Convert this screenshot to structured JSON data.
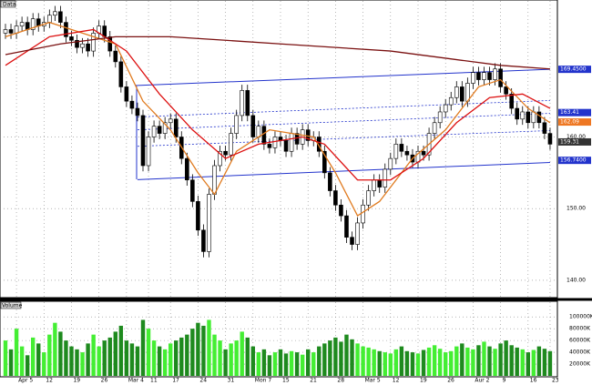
{
  "chart_data": {
    "type": "candlestick",
    "title": "Data",
    "volume_title": "Volume",
    "candles": [
      [
        174.5,
        175.8,
        173.7,
        175
      ],
      [
        175,
        175.8,
        173.7,
        174.5
      ],
      [
        174.5,
        176.3,
        173.7,
        175.5
      ],
      [
        175.5,
        176.8,
        174.7,
        176
      ],
      [
        176,
        176.8,
        174.2,
        175
      ],
      [
        175,
        177.3,
        174.2,
        176.5
      ],
      [
        176.5,
        177.3,
        174.7,
        175.5
      ],
      [
        175.5,
        176.8,
        174.7,
        176
      ],
      [
        176,
        177.8,
        175.2,
        177
      ],
      [
        177,
        178.3,
        176.2,
        177.5
      ],
      [
        177.5,
        178.3,
        175.2,
        176
      ],
      [
        176,
        176.8,
        173.2,
        174
      ],
      [
        174,
        174.8,
        172.7,
        173.5
      ],
      [
        173.5,
        174.3,
        171.7,
        172.5
      ],
      [
        172.5,
        173.8,
        171.7,
        173
      ],
      [
        173,
        173.8,
        171.2,
        172
      ],
      [
        172,
        175.3,
        171.2,
        174.5
      ],
      [
        174.5,
        176.3,
        173.7,
        175.5
      ],
      [
        175.5,
        176.3,
        173.2,
        174
      ],
      [
        174,
        174.8,
        171.2,
        172
      ],
      [
        172,
        172.8,
        169.7,
        170.5
      ],
      [
        170.5,
        171.3,
        166.2,
        167
      ],
      [
        167,
        167.8,
        164.2,
        165
      ],
      [
        165,
        165.8,
        163.2,
        164
      ],
      [
        164,
        164.8,
        162.2,
        163
      ],
      [
        163,
        163.8,
        155.2,
        156
      ],
      [
        156,
        160.8,
        155.2,
        160
      ],
      [
        160,
        162.3,
        159.2,
        161.5
      ],
      [
        161.5,
        162.3,
        159.7,
        160.5
      ],
      [
        160.5,
        162.8,
        159.7,
        162
      ],
      [
        162,
        163.3,
        161.2,
        162.5
      ],
      [
        162.5,
        163.3,
        159.2,
        160
      ],
      [
        160,
        160.8,
        156.2,
        157
      ],
      [
        157,
        157.8,
        153.2,
        154
      ],
      [
        154,
        154.8,
        150.2,
        151
      ],
      [
        151,
        151.8,
        146.2,
        147
      ],
      [
        147,
        147.8,
        143.2,
        144
      ],
      [
        144,
        152.8,
        143.2,
        152
      ],
      [
        152,
        156.8,
        151.2,
        156
      ],
      [
        156,
        158.8,
        155.2,
        158
      ],
      [
        158,
        158.8,
        156.7,
        157.5
      ],
      [
        157.5,
        161.3,
        156.7,
        160.5
      ],
      [
        160.5,
        163.8,
        159.7,
        163
      ],
      [
        163,
        167.3,
        162.2,
        166.5
      ],
      [
        166.5,
        167.3,
        162.2,
        163
      ],
      [
        163,
        163.8,
        159.2,
        160
      ],
      [
        160,
        162.3,
        159.2,
        161.5
      ],
      [
        161.5,
        162.3,
        158.2,
        159
      ],
      [
        159,
        159.8,
        157.7,
        158.5
      ],
      [
        158.5,
        160.8,
        157.7,
        160
      ],
      [
        160,
        160.8,
        158.7,
        159.5
      ],
      [
        159.5,
        160.3,
        157.2,
        158
      ],
      [
        158,
        161.3,
        157.2,
        160.5
      ],
      [
        160.5,
        161.3,
        158.2,
        159
      ],
      [
        159,
        161.8,
        158.2,
        161
      ],
      [
        161,
        161.8,
        158.7,
        159.5
      ],
      [
        159.5,
        160.8,
        158.7,
        160
      ],
      [
        160,
        160.8,
        157.2,
        158
      ],
      [
        158,
        158.8,
        154.2,
        155
      ],
      [
        155,
        155.8,
        151.7,
        152.5
      ],
      [
        152.5,
        153.3,
        149.7,
        150.5
      ],
      [
        150.5,
        151.3,
        148.2,
        149
      ],
      [
        149,
        149.8,
        145.2,
        146
      ],
      [
        146,
        146.8,
        144.2,
        145
      ],
      [
        145,
        148.8,
        144.2,
        148
      ],
      [
        148,
        151.3,
        147.2,
        150.5
      ],
      [
        150.5,
        153.3,
        149.7,
        152.5
      ],
      [
        152.5,
        154.8,
        151.7,
        154
      ],
      [
        154,
        154.8,
        152.2,
        153
      ],
      [
        153,
        156.3,
        152.2,
        155.5
      ],
      [
        155.5,
        157.8,
        154.7,
        157
      ],
      [
        157,
        159.8,
        156.2,
        159
      ],
      [
        159,
        159.8,
        157.2,
        158
      ],
      [
        158,
        158.8,
        156.7,
        157.5
      ],
      [
        157.5,
        158.3,
        155.7,
        156.5
      ],
      [
        156.5,
        158.8,
        155.7,
        158
      ],
      [
        158,
        158.8,
        156.7,
        157.5
      ],
      [
        157.5,
        161.3,
        156.7,
        160.5
      ],
      [
        160.5,
        162.8,
        159.7,
        162
      ],
      [
        162,
        164.3,
        161.2,
        163.5
      ],
      [
        163.5,
        165.3,
        162.7,
        164.5
      ],
      [
        164.5,
        166.3,
        163.7,
        165.5
      ],
      [
        165.5,
        167.8,
        164.7,
        167
      ],
      [
        167,
        167.8,
        164.2,
        165
      ],
      [
        165,
        168.3,
        164.2,
        167.5
      ],
      [
        167.5,
        169.8,
        166.7,
        169
      ],
      [
        169,
        169.8,
        167.2,
        168
      ],
      [
        168,
        169.8,
        167.2,
        169
      ],
      [
        169,
        169.8,
        167.2,
        168
      ],
      [
        168,
        170.3,
        167.2,
        169.5
      ],
      [
        169.5,
        170.3,
        166.2,
        167
      ],
      [
        167,
        167.8,
        165.2,
        166
      ],
      [
        166,
        166.8,
        163.2,
        164
      ],
      [
        164,
        164.8,
        161.7,
        162.5
      ],
      [
        162.5,
        164.3,
        161.7,
        163.5
      ],
      [
        163.5,
        164.3,
        161.2,
        162
      ],
      [
        162,
        164.3,
        161.2,
        163.5
      ],
      [
        163.5,
        164.3,
        161.2,
        162
      ],
      [
        162,
        162.8,
        159.7,
        160.5
      ],
      [
        160.5,
        161.3,
        158.2,
        159
      ]
    ],
    "volume": [
      60000,
      45000,
      80000,
      50000,
      35000,
      65000,
      55000,
      40000,
      70000,
      90000,
      75000,
      60000,
      50000,
      45000,
      40000,
      55000,
      70000,
      50000,
      60000,
      65000,
      75000,
      85000,
      60000,
      55000,
      50000,
      95000,
      80000,
      60000,
      50000,
      45000,
      55000,
      60000,
      65000,
      70000,
      80000,
      90000,
      85000,
      95000,
      70000,
      60000,
      45000,
      55000,
      60000,
      75000,
      65000,
      50000,
      40000,
      45000,
      35000,
      40000,
      45000,
      38000,
      42000,
      40000,
      36000,
      45000,
      40000,
      50000,
      55000,
      60000,
      65000,
      58000,
      70000,
      62000,
      55000,
      50000,
      48000,
      45000,
      42000,
      40000,
      38000,
      45000,
      50000,
      42000,
      40000,
      38000,
      44000,
      48000,
      52000,
      46000,
      40000,
      42000,
      50000,
      55000,
      48000,
      45000,
      52000,
      58000,
      50000,
      46000,
      55000,
      60000,
      52000,
      48000,
      45000,
      40000,
      44000,
      50000,
      46000,
      42000
    ],
    "up_color": "#ffffff",
    "down_color": "#000000",
    "volume_up_color": "#44ee33",
    "volume_down_color": "#1e8a1e",
    "moving_averages": [
      {
        "color": "#e07b20",
        "x": [
          0,
          8,
          14,
          20,
          25,
          30,
          35,
          38,
          42,
          48,
          56,
          60,
          64,
          68,
          74,
          80,
          86,
          90,
          95,
          99
        ],
        "values": [
          174,
          176,
          174.5,
          173,
          165,
          161,
          155,
          152,
          158,
          161,
          160,
          155,
          149,
          151,
          157,
          161,
          167,
          168,
          164,
          162
        ]
      },
      {
        "color": "#dd1111",
        "x": [
          0,
          8,
          16,
          22,
          28,
          34,
          40,
          46,
          54,
          58,
          64,
          70,
          76,
          82,
          88,
          94,
          99
        ],
        "values": [
          170,
          174,
          175,
          172,
          166,
          161,
          157,
          159,
          160,
          159,
          154,
          154,
          157,
          162,
          165.5,
          166,
          164
        ]
      },
      {
        "color": "#7a1010",
        "x": [
          0,
          10,
          20,
          30,
          40,
          50,
          60,
          70,
          80,
          90,
          99
        ],
        "values": [
          171.5,
          173,
          174,
          174,
          173.5,
          173,
          172.5,
          172,
          171,
          170,
          169.5
        ]
      }
    ],
    "channel_lines": [
      {
        "color": "#2233cc",
        "dash": false,
        "x": [
          24,
          99
        ],
        "values": [
          167.2,
          169.45
        ]
      },
      {
        "color": "#2233cc",
        "dash": true,
        "x": [
          24,
          99
        ],
        "values": [
          162.8,
          165.1
        ]
      },
      {
        "color": "#2233cc",
        "dash": true,
        "x": [
          24,
          99
        ],
        "values": [
          161,
          163.3
        ]
      },
      {
        "color": "#2233cc",
        "dash": true,
        "x": [
          24,
          99
        ],
        "values": [
          158.7,
          160.9
        ]
      },
      {
        "color": "#2233cc",
        "dash": false,
        "x": [
          24,
          99
        ],
        "values": [
          154.05,
          156.45
        ]
      }
    ],
    "price_labels": [
      {
        "value": 169.45,
        "label": "169.4500",
        "color": "#2233cc"
      },
      {
        "value": 163.41,
        "label": "163.41",
        "color": "#2233cc"
      },
      {
        "value": 162.09,
        "label": "162.09",
        "color": "#ee7722"
      },
      {
        "value": 159.31,
        "label": "159.31",
        "color": "#333333"
      },
      {
        "value": 156.74,
        "label": "156.7400",
        "color": "#2233cc"
      }
    ],
    "ylim": [
      137.7,
      179
    ],
    "yticks": [
      {
        "value": 140,
        "label": "140.00"
      },
      {
        "value": 150,
        "label": "150.00"
      },
      {
        "value": 160,
        "label": "160.00"
      }
    ],
    "vlim": [
      0,
      125000
    ],
    "vticks": [
      {
        "value": 20000,
        "label": "20000K"
      },
      {
        "value": 40000,
        "label": "40000K"
      },
      {
        "value": 60000,
        "label": "60000K"
      },
      {
        "value": 80000,
        "label": "80000K"
      },
      {
        "value": 100000,
        "label": "100000K"
      }
    ],
    "x_labels": [
      {
        "index": 2,
        "label": "Apr 5"
      },
      {
        "index": 7,
        "label": "12"
      },
      {
        "index": 12,
        "label": "19"
      },
      {
        "index": 17,
        "label": "26"
      },
      {
        "index": 22,
        "label": "Mar 4"
      },
      {
        "index": 26,
        "label": "11"
      },
      {
        "index": 30,
        "label": "17"
      },
      {
        "index": 35,
        "label": "24"
      },
      {
        "index": 40,
        "label": "31"
      },
      {
        "index": 45,
        "label": "Mon 7"
      },
      {
        "index": 50,
        "label": "15"
      },
      {
        "index": 55,
        "label": "21"
      },
      {
        "index": 60,
        "label": "28"
      },
      {
        "index": 65,
        "label": "Mar 5"
      },
      {
        "index": 70,
        "label": "12"
      },
      {
        "index": 75,
        "label": "19"
      },
      {
        "index": 80,
        "label": "26"
      },
      {
        "index": 85,
        "label": "Aur 2"
      },
      {
        "index": 90,
        "label": "9"
      },
      {
        "index": 95,
        "label": "16"
      },
      {
        "index": 99,
        "label": "23"
      }
    ],
    "grid": true
  }
}
